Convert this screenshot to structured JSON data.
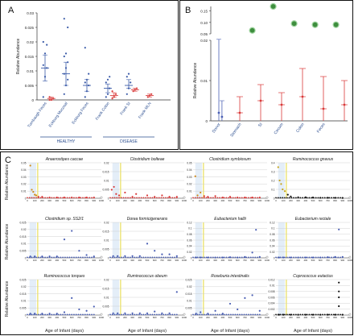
{
  "panels": {
    "A": {
      "letter": "A",
      "ylabel": "Relative Abundance",
      "y_ticks": [
        "0",
        "0.005",
        "0.01",
        "0.015",
        "0.02",
        "0.025",
        "0.03"
      ],
      "ylim": [
        0,
        0.03
      ],
      "categories": [
        "Turnbaugh Feces",
        "Eckburg Mucosal",
        "Eckburg Feces",
        "Frank Colon",
        "Frank SI",
        "Frank MLN"
      ],
      "groups": [
        {
          "label": "HEALTHY",
          "from": 0,
          "to": 2
        },
        {
          "label": "DISEASE",
          "from": 3,
          "to": 5
        }
      ],
      "series": [
        {
          "color": "#3b5ba9",
          "cat": 0,
          "points": [
            0.001,
            0.008,
            0.011,
            0.012,
            0.016,
            0.019,
            0.02
          ],
          "mean": 0.011,
          "sd": [
            0.0065,
            0.0155
          ]
        },
        {
          "color": "#d93a3a",
          "cat": 0.3,
          "points": [
            0,
            0,
            0.0005,
            0.001
          ],
          "mean": 0.0005,
          "sd": [
            0.0,
            0.001
          ]
        },
        {
          "color": "#3b5ba9",
          "cat": 1,
          "points": [
            0.002,
            0.005,
            0.007,
            0.009,
            0.011,
            0.013,
            0.015,
            0.016,
            0.025,
            0.028
          ],
          "mean": 0.009,
          "sd": [
            0.005,
            0.013
          ]
        },
        {
          "color": "#3b5ba9",
          "cat": 2,
          "points": [
            0.001,
            0.003,
            0.005,
            0.006,
            0.007,
            0.009,
            0.018
          ],
          "mean": 0.005,
          "sd": [
            0.003,
            0.007
          ]
        },
        {
          "color": "#3b5ba9",
          "cat": 3,
          "points": [
            0.001,
            0.002,
            0.004,
            0.006,
            0.007,
            0.008
          ],
          "mean": 0.004,
          "sd": [
            0.0025,
            0.0055
          ]
        },
        {
          "color": "#d93a3a",
          "cat": 3.3,
          "points": [
            0.0005,
            0.001,
            0.002,
            0.003
          ],
          "mean": 0.0015,
          "sd": [
            0.001,
            0.0025
          ]
        },
        {
          "color": "#3b5ba9",
          "cat": 4,
          "points": [
            0.002,
            0.004,
            0.006,
            0.008,
            0.009
          ],
          "mean": 0.005,
          "sd": [
            0.004,
            0.007
          ]
        },
        {
          "color": "#d93a3a",
          "cat": 4.3,
          "points": [
            0.003,
            0.0035,
            0.004
          ],
          "mean": 0.0035,
          "sd": [
            0.003,
            0.004
          ]
        },
        {
          "color": "#d93a3a",
          "cat": 5,
          "points": [
            0.001,
            0.0015,
            0.002
          ],
          "mean": 0.0015,
          "sd": [
            0.001,
            0.002
          ]
        }
      ]
    },
    "B": {
      "letter": "B",
      "ylabel": "Relative Abundance",
      "y_ticks_low": [
        "0",
        "0.01",
        "0.02"
      ],
      "y_ticks_high": [
        "0.05",
        "0.10",
        "0.15"
      ],
      "categories": [
        "Donor",
        "Stomach",
        "SI",
        "Cecum",
        "Colon",
        "Feces"
      ],
      "green_points": [
        {
          "x": 1.6,
          "y": 0.065
        },
        {
          "x": 2.6,
          "y": 0.17
        },
        {
          "x": 3.6,
          "y": 0.095
        },
        {
          "x": 4.6,
          "y": 0.09
        },
        {
          "x": 5.6,
          "y": 0.09
        }
      ],
      "blue": [
        {
          "x": 0,
          "low": 0,
          "mean": 0.002,
          "high": 0.026
        },
        {
          "x": 0.15,
          "low": 0,
          "mean": 0.001,
          "high": 0.005
        }
      ],
      "red": [
        {
          "x": 1,
          "low": 0,
          "mean": 0.002,
          "high": 0.006
        },
        {
          "x": 2,
          "low": 0,
          "mean": 0.005,
          "high": 0.009
        },
        {
          "x": 3,
          "low": 0,
          "mean": 0.004,
          "high": 0.007
        },
        {
          "x": 4,
          "low": 0,
          "mean": 0.006,
          "high": 0.013
        },
        {
          "x": 5,
          "low": 0,
          "mean": 0.003,
          "high": 0.011
        },
        {
          "x": 6,
          "low": 0,
          "mean": 0.004,
          "high": 0.01
        }
      ]
    },
    "C": {
      "letter": "C",
      "ylabel": "Relative Abundance",
      "xlabel": "Age of Infant (days)",
      "x_ticks": [
        "0",
        "100",
        "200",
        "300",
        "400",
        "500",
        "600",
        "700",
        "800",
        "900",
        "1000"
      ],
      "subplots": [
        {
          "title": "Anaerostipes caccae",
          "color": "#d93a3a",
          "highlight": "#d08a1a",
          "yticks": [
            "0",
            "0.01",
            "0.02",
            "0.03",
            "0.04",
            "0.05"
          ],
          "ymax": 0.05,
          "pts": [
            [
              40,
              0.046
            ],
            [
              60,
              0.012
            ],
            [
              80,
              0.009
            ],
            [
              100,
              0.005
            ],
            [
              120,
              0.004
            ],
            [
              150,
              0.002
            ],
            [
              200,
              0.002
            ],
            [
              300,
              0.001
            ],
            [
              400,
              0.001
            ],
            [
              500,
              0.001
            ],
            [
              600,
              0.001
            ],
            [
              700,
              0.001
            ],
            [
              800,
              0.001
            ],
            [
              900,
              0.001
            ]
          ]
        },
        {
          "title": "Clostridium bolteae",
          "color": "#d93a3a",
          "highlight": null,
          "yticks": [
            "0",
            "0.005",
            "0.01",
            "0.015",
            "0.02"
          ],
          "ymax": 0.025,
          "pts": [
            [
              20,
              0.006
            ],
            [
              50,
              0.008
            ],
            [
              80,
              0.003
            ],
            [
              120,
              0.002
            ],
            [
              200,
              0.004
            ],
            [
              300,
              0.001
            ],
            [
              350,
              0.003
            ],
            [
              500,
              0.002
            ],
            [
              600,
              0.001
            ],
            [
              700,
              0.002
            ],
            [
              800,
              0.001
            ],
            [
              900,
              0.001
            ]
          ]
        },
        {
          "title": "Clostridium symbiosum",
          "color": "#d93a3a",
          "highlight": "#d08a1a",
          "yticks": [
            "0",
            "0.01",
            "0.02",
            "0.03",
            "0.04",
            "0.05"
          ],
          "ymax": 0.05,
          "pts": [
            [
              30,
              0.031
            ],
            [
              60,
              0.004
            ],
            [
              100,
              0.008
            ],
            [
              150,
              0.003
            ],
            [
              200,
              0.002
            ],
            [
              300,
              0.003
            ],
            [
              400,
              0.001
            ],
            [
              500,
              0.002
            ],
            [
              600,
              0.001
            ],
            [
              700,
              0.001
            ],
            [
              800,
              0.001
            ],
            [
              900,
              0.001
            ]
          ]
        },
        {
          "title": "Ruminococcus gnavus",
          "color": "#111111",
          "highlight": "#c8a316",
          "yticks": [
            "0",
            "0.1",
            "0.2",
            "0.3",
            "0.4"
          ],
          "ymax": 0.4,
          "pts": [
            [
              30,
              0.35
            ],
            [
              50,
              0.2
            ],
            [
              70,
              0.16
            ],
            [
              90,
              0.1
            ],
            [
              120,
              0.08
            ],
            [
              160,
              0.04
            ],
            [
              200,
              0.02
            ],
            [
              300,
              0.01
            ],
            [
              400,
              0.01
            ],
            [
              500,
              0.008
            ],
            [
              600,
              0.005
            ],
            [
              700,
              0.005
            ],
            [
              800,
              0.004
            ],
            [
              900,
              0.003
            ]
          ]
        },
        {
          "title": "Clostridium sp. SS2/1",
          "color": "#4a5fb4",
          "highlight": null,
          "yticks": [
            "0",
            "0.005",
            "0.01",
            "0.015",
            "0.02",
            "0.025"
          ],
          "ymax": 0.025,
          "pts": [
            [
              40,
              0.001
            ],
            [
              100,
              0.001
            ],
            [
              200,
              0.001
            ],
            [
              300,
              0.001
            ],
            [
              400,
              0.001
            ],
            [
              500,
              0.013
            ],
            [
              600,
              0.019
            ],
            [
              700,
              0.005
            ],
            [
              800,
              0.002
            ],
            [
              900,
              0.001
            ]
          ]
        },
        {
          "title": "Dorea formicigenerans",
          "color": "#4a5fb4",
          "highlight": null,
          "yticks": [
            "0",
            "0.005",
            "0.01",
            "0.015",
            "0.02"
          ],
          "ymax": 0.02,
          "pts": [
            [
              40,
              0.001
            ],
            [
              100,
              0.001
            ],
            [
              200,
              0.001
            ],
            [
              300,
              0.001
            ],
            [
              400,
              0.001
            ],
            [
              500,
              0.008
            ],
            [
              600,
              0.004
            ],
            [
              700,
              0.002
            ],
            [
              800,
              0.002
            ],
            [
              900,
              0.001
            ]
          ]
        },
        {
          "title": "Eubacterium hallii",
          "color": "#4a5fb4",
          "highlight": null,
          "yticks": [
            "0",
            "0.02",
            "0.04",
            "0.06",
            "0.08",
            "0.1",
            "0.12"
          ],
          "ymax": 0.12,
          "pts": [
            [
              40,
              0.001
            ],
            [
              100,
              0.001
            ],
            [
              200,
              0.001
            ],
            [
              300,
              0.001
            ],
            [
              400,
              0.001
            ],
            [
              500,
              0.002
            ],
            [
              600,
              0.001
            ],
            [
              700,
              0.003
            ],
            [
              800,
              0.018
            ],
            [
              850,
              0.095
            ],
            [
              900,
              0.003
            ]
          ]
        },
        {
          "title": "Eubacterium rectale",
          "color": "#4a5fb4",
          "highlight": null,
          "yticks": [
            "0",
            "0.02",
            "0.04",
            "0.06",
            "0.08",
            "0.1",
            "0.12"
          ],
          "ymax": 0.12,
          "pts": [
            [
              40,
              0.001
            ],
            [
              100,
              0.001
            ],
            [
              200,
              0.001
            ],
            [
              300,
              0.001
            ],
            [
              400,
              0.001
            ],
            [
              500,
              0.001
            ],
            [
              600,
              0.001
            ],
            [
              700,
              0.002
            ],
            [
              800,
              0.003
            ],
            [
              850,
              0.096
            ],
            [
              900,
              0.003
            ]
          ]
        },
        {
          "title": "Ruminococcus torques",
          "color": "#4a5fb4",
          "highlight": null,
          "yticks": [
            "0",
            "0.005",
            "0.01",
            "0.015",
            "0.02",
            "0.025"
          ],
          "ymax": 0.025,
          "pts": [
            [
              40,
              0.001
            ],
            [
              100,
              0.001
            ],
            [
              200,
              0.001
            ],
            [
              300,
              0.001
            ],
            [
              400,
              0.001
            ],
            [
              500,
              0.002
            ],
            [
              600,
              0.012
            ],
            [
              700,
              0.004
            ],
            [
              800,
              0.003
            ],
            [
              900,
              0.006
            ]
          ]
        },
        {
          "title": "Ruminococcus obeum",
          "color": "#4a5fb4",
          "highlight": null,
          "yticks": [
            "0",
            "0.005",
            "0.01",
            "0.015",
            "0.02"
          ],
          "ymax": 0.02,
          "pts": [
            [
              40,
              0.001
            ],
            [
              100,
              0.001
            ],
            [
              200,
              0.001
            ],
            [
              300,
              0.001
            ],
            [
              400,
              0.001
            ],
            [
              500,
              0.001
            ],
            [
              600,
              0.002
            ],
            [
              700,
              0.001
            ],
            [
              800,
              0.001
            ],
            [
              900,
              0.013
            ]
          ]
        },
        {
          "title": "Roseburia intestinalis",
          "color": "#4a5fb4",
          "highlight": null,
          "yticks": [
            "0",
            "0.005",
            "0.01",
            "0.015",
            "0.02",
            "0.025"
          ],
          "ymax": 0.025,
          "pts": [
            [
              40,
              0.001
            ],
            [
              100,
              0.002
            ],
            [
              200,
              0.001
            ],
            [
              300,
              0.003
            ],
            [
              400,
              0.001
            ],
            [
              500,
              0.008
            ],
            [
              600,
              0.004
            ],
            [
              700,
              0.012
            ],
            [
              800,
              0.014
            ],
            [
              900,
              0.003
            ]
          ]
        },
        {
          "title": "Coprococcus eutactus",
          "color": "#111111",
          "highlight": null,
          "yticks": [
            "0",
            "0.002",
            "0.004",
            "0.006",
            "0.008",
            "0.01",
            "0.012"
          ],
          "ymax": 0.012,
          "pts": [
            [
              40,
              0.0001
            ],
            [
              100,
              0.0001
            ],
            [
              200,
              0.0001
            ],
            [
              300,
              0.0001
            ],
            [
              400,
              0.0001
            ],
            [
              500,
              0.0001
            ],
            [
              600,
              0.0001
            ],
            [
              700,
              0.0001
            ],
            [
              800,
              0.0001
            ],
            [
              850,
              0.011
            ],
            [
              850,
              0.008
            ],
            [
              850,
              0.006
            ],
            [
              850,
              0.003
            ],
            [
              900,
              0.0001
            ]
          ]
        }
      ]
    }
  },
  "chart_data": [
    {
      "type": "scatter",
      "panel": "A",
      "ylabel": "Relative Abundance",
      "categories": [
        "Turnbaugh Feces",
        "Eckburg Mucosal",
        "Eckburg Feces",
        "Frank Colon",
        "Frank SI",
        "Frank MLN"
      ],
      "ylim": [
        0,
        0.03
      ]
    },
    {
      "type": "scatter",
      "panel": "B",
      "ylabel": "Relative Abundance",
      "categories": [
        "Donor",
        "Stomach",
        "SI",
        "Cecum",
        "Colon",
        "Feces"
      ]
    },
    {
      "type": "scatter",
      "panel": "C",
      "ylabel": "Relative Abundance",
      "xlabel": "Age of Infant (days)",
      "xlim": [
        0,
        1000
      ]
    }
  ]
}
